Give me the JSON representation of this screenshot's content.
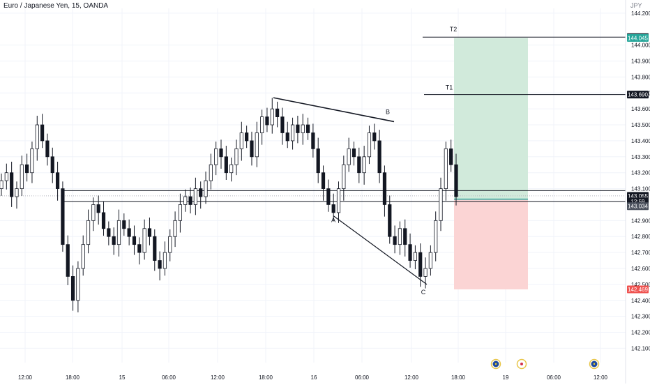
{
  "header": {
    "symbol_title": "Euro / Japanese Yen, 15, OANDA",
    "currency": "JPY"
  },
  "colors": {
    "background": "#ffffff",
    "candle": "#131722",
    "grid": "#f0f3fa",
    "axis_text": "#131722",
    "target_zone": "#d1eadb",
    "stop_zone": "#fbd4d4",
    "green_tag": "#26a69a",
    "red_tag": "#ef5350",
    "label_dark": "#131722"
  },
  "chart_data": {
    "type": "candlestick",
    "title": "Euro / Japanese Yen, 15, OANDA",
    "ylim": [
      142.01,
      144.23
    ],
    "price_ticks": [
      "144.200",
      "144.000",
      "143.900",
      "143.800",
      "143.700",
      "143.600",
      "143.500",
      "143.400",
      "143.300",
      "143.200",
      "143.100",
      "142.900",
      "142.800",
      "142.700",
      "142.600",
      "142.500",
      "142.400",
      "142.300",
      "142.200",
      "142.100"
    ],
    "price_tick_values": [
      144.2,
      144.0,
      143.9,
      143.8,
      143.7,
      143.6,
      143.5,
      143.4,
      143.3,
      143.2,
      143.1,
      142.9,
      142.8,
      142.7,
      142.6,
      142.5,
      142.4,
      142.3,
      142.2,
      142.1
    ],
    "time_ticks": [
      "12:00",
      "18:00",
      "15",
      "06:00",
      "12:00",
      "18:00",
      "16",
      "06:00",
      "12:00",
      "18:00",
      "19",
      "06:00",
      "12:00"
    ],
    "time_tick_x": [
      36,
      104,
      175,
      242,
      312,
      381,
      450,
      519,
      590,
      657,
      725,
      794,
      861
    ],
    "price_tags": [
      {
        "label": "144.050",
        "value": 144.05,
        "style": "dark"
      },
      {
        "label": "144.045",
        "value": 144.045,
        "style": "green"
      },
      {
        "label": "143.690",
        "value": 143.69,
        "style": "dark"
      },
      {
        "label": "143.055",
        "value": 143.055,
        "style": "dark"
      },
      {
        "label": "12:59",
        "value": 143.02,
        "style": "dark"
      },
      {
        "label": "143.034",
        "value": 142.99,
        "style": "gray"
      },
      {
        "label": "142.469",
        "value": 142.469,
        "style": "red"
      }
    ],
    "horizontal_levels": [
      {
        "name": "resistance",
        "value": 143.088
      },
      {
        "name": "current",
        "value": 143.055
      },
      {
        "name": "support",
        "value": 143.02
      },
      {
        "name": "T2",
        "value": 144.05
      },
      {
        "name": "T1",
        "value": 143.69
      }
    ],
    "labels": {
      "T2": "T2",
      "T1": "T1",
      "A": "A",
      "B": "B",
      "C": "C"
    },
    "pattern_points": {
      "B_line": [
        [
          143.67,
          392
        ],
        [
          143.52,
          565
        ]
      ],
      "A_C_line": [
        [
          142.93,
          478
        ],
        [
          142.5,
          612
        ]
      ]
    },
    "position": {
      "entry": 143.034,
      "target": 144.045,
      "stop": 142.469
    },
    "closes": [
      143.15,
      143.2,
      143.05,
      143.1,
      143.25,
      143.2,
      143.35,
      143.5,
      143.4,
      143.3,
      143.2,
      143.1,
      142.75,
      142.55,
      142.4,
      142.6,
      142.75,
      142.9,
      143.0,
      142.95,
      142.85,
      142.8,
      142.75,
      142.9,
      142.85,
      142.8,
      142.75,
      142.7,
      142.85,
      142.8,
      142.65,
      142.6,
      142.7,
      142.8,
      142.9,
      143.0,
      143.05,
      143.0,
      143.1,
      143.05,
      143.15,
      143.25,
      143.35,
      143.3,
      143.2,
      143.25,
      143.35,
      143.45,
      143.4,
      143.3,
      143.45,
      143.55,
      143.5,
      143.6,
      143.55,
      143.45,
      143.4,
      143.5,
      143.45,
      143.5,
      143.45,
      143.35,
      143.2,
      143.1,
      143.0,
      142.95,
      143.1,
      143.25,
      143.35,
      143.3,
      143.2,
      143.3,
      143.45,
      143.4,
      143.2,
      143.0,
      142.8,
      142.75,
      142.85,
      142.75,
      142.65,
      142.7,
      142.55,
      142.6,
      142.7,
      142.9,
      143.1,
      143.35,
      143.25,
      143.05
    ]
  },
  "event_icons": [
    "eu-flag-icon",
    "jp-flag-icon",
    "eu-flag-icon"
  ]
}
